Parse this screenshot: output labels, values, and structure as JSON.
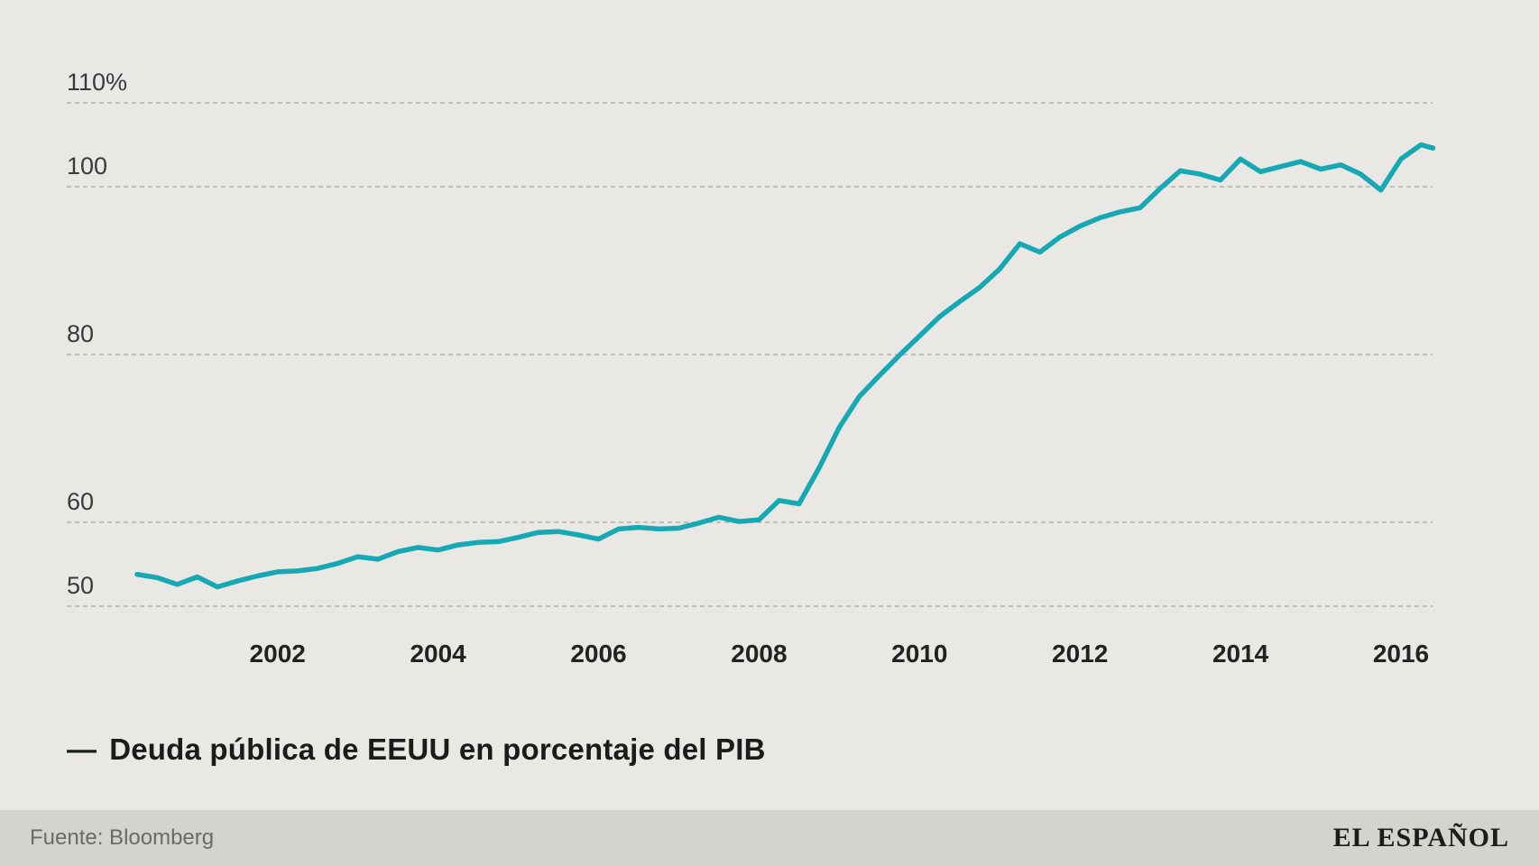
{
  "legend": {
    "marker": "—",
    "label": "Deuda pública de EEUU en porcentaje del PIB"
  },
  "footer": {
    "source": "Fuente: Bloomberg",
    "brand": "EL ESPAÑOL"
  },
  "colors": {
    "line": "#16a9b4",
    "background": "#e9e8e5",
    "footer_background": "#d4d3cf",
    "gridline": "#b1b0ac",
    "source_text": "#6b6a67"
  },
  "chart_data": {
    "type": "line",
    "title": "",
    "xlabel": "",
    "ylabel": "",
    "grid": "horizontal-dashed",
    "legend_position": "bottom-left",
    "ylim": [
      50,
      110
    ],
    "x_range": [
      2000.25,
      2016.4
    ],
    "x_ticks": [
      2002,
      2004,
      2006,
      2008,
      2010,
      2012,
      2014,
      2016
    ],
    "y_gridlines": [
      {
        "value": 110,
        "label": "110%"
      },
      {
        "value": 100,
        "label": "100"
      },
      {
        "value": 80,
        "label": "80"
      },
      {
        "value": 60,
        "label": "60"
      },
      {
        "value": 50,
        "label": "50"
      }
    ],
    "series": [
      {
        "name": "Deuda pública de EEUU en porcentaje del PIB",
        "points": [
          [
            2000.25,
            53.8
          ],
          [
            2000.5,
            53.4
          ],
          [
            2000.75,
            52.6
          ],
          [
            2001,
            53.5
          ],
          [
            2001.25,
            52.3
          ],
          [
            2001.5,
            53.0
          ],
          [
            2001.75,
            53.6
          ],
          [
            2002,
            54.1
          ],
          [
            2002.25,
            54.2
          ],
          [
            2002.5,
            54.5
          ],
          [
            2002.75,
            55.1
          ],
          [
            2003,
            55.9
          ],
          [
            2003.25,
            55.6
          ],
          [
            2003.5,
            56.5
          ],
          [
            2003.75,
            57.0
          ],
          [
            2004,
            56.7
          ],
          [
            2004.25,
            57.3
          ],
          [
            2004.5,
            57.6
          ],
          [
            2004.75,
            57.7
          ],
          [
            2005,
            58.2
          ],
          [
            2005.25,
            58.8
          ],
          [
            2005.5,
            58.9
          ],
          [
            2005.75,
            58.5
          ],
          [
            2006,
            58.0
          ],
          [
            2006.25,
            59.2
          ],
          [
            2006.5,
            59.4
          ],
          [
            2006.75,
            59.2
          ],
          [
            2007,
            59.3
          ],
          [
            2007.25,
            59.9
          ],
          [
            2007.5,
            60.6
          ],
          [
            2007.75,
            60.1
          ],
          [
            2008,
            60.3
          ],
          [
            2008.25,
            62.6
          ],
          [
            2008.5,
            62.2
          ],
          [
            2008.75,
            66.5
          ],
          [
            2009,
            71.3
          ],
          [
            2009.25,
            75.0
          ],
          [
            2009.5,
            77.5
          ],
          [
            2009.75,
            79.9
          ],
          [
            2010,
            82.2
          ],
          [
            2010.25,
            84.5
          ],
          [
            2010.5,
            86.3
          ],
          [
            2010.75,
            88.0
          ],
          [
            2011,
            90.2
          ],
          [
            2011.25,
            93.2
          ],
          [
            2011.5,
            92.2
          ],
          [
            2011.75,
            94.0
          ],
          [
            2012,
            95.3
          ],
          [
            2012.25,
            96.3
          ],
          [
            2012.5,
            97.0
          ],
          [
            2012.75,
            97.5
          ],
          [
            2013,
            99.8
          ],
          [
            2013.25,
            101.9
          ],
          [
            2013.5,
            101.5
          ],
          [
            2013.75,
            100.8
          ],
          [
            2014,
            103.3
          ],
          [
            2014.25,
            101.8
          ],
          [
            2014.5,
            102.4
          ],
          [
            2014.75,
            103.0
          ],
          [
            2015,
            102.1
          ],
          [
            2015.25,
            102.6
          ],
          [
            2015.5,
            101.5
          ],
          [
            2015.75,
            99.6
          ],
          [
            2016,
            103.3
          ],
          [
            2016.25,
            105.0
          ],
          [
            2016.4,
            104.6
          ]
        ]
      }
    ]
  }
}
